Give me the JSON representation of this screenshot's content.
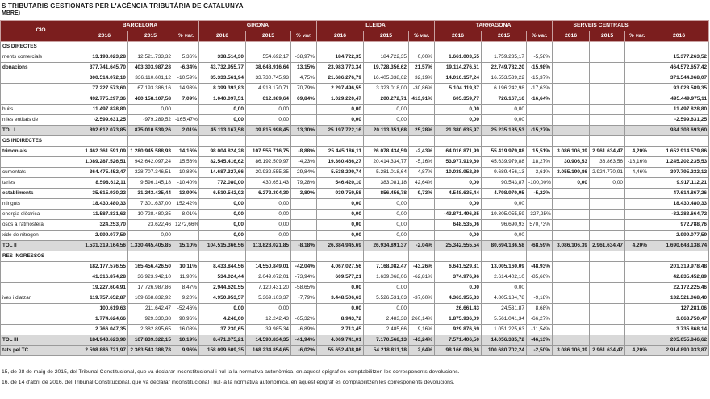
{
  "title": "S TRIBUTARIS GESTIONATS PER L'AGÈNCIA TRIBUTÀRIA DE CATALUNYA",
  "subtitle": "MBRE)",
  "colors": {
    "header_bg": "#7b1e1e",
    "header_text": "#ffffff",
    "total_row_bg": "#d9d9d9"
  },
  "table": {
    "label_header": "CIÓ",
    "groups": [
      {
        "name": "BARCELONA",
        "cols": [
          "2016",
          "2015",
          "% var."
        ]
      },
      {
        "name": "GIRONA",
        "cols": [
          "2016",
          "2015",
          "% var."
        ]
      },
      {
        "name": "LLEIDA",
        "cols": [
          "2016",
          "2015",
          "% var."
        ]
      },
      {
        "name": "TARRAGONA",
        "cols": [
          "2016",
          "2015",
          "% var."
        ]
      },
      {
        "name": "SERVEIS CENTRALS",
        "cols": [
          "2016",
          "2015",
          "% var."
        ]
      },
      {
        "name": "",
        "cols": [
          "2016"
        ]
      }
    ],
    "rows": [
      {
        "l": "OS DIRECTES",
        "s": "section",
        "c": [
          "",
          "",
          "",
          "",
          "",
          "",
          "",
          "",
          "",
          "",
          "",
          "",
          "",
          "",
          "",
          ""
        ]
      },
      {
        "l": "ments comercials",
        "s": "plain",
        "c": [
          "13.193.023,28",
          "12.521.733,32",
          "5,36%",
          "338.514,30",
          "554.692,17",
          "-38,97%",
          "184.722,35",
          "184.722,35",
          "0,00%",
          "1.661.003,55",
          "1.759.235,17",
          "-5,58%",
          "",
          "",
          "",
          "15.377.263,52"
        ]
      },
      {
        "l": "donacions",
        "s": "bold",
        "c": [
          "377.741.645,70",
          "403.303.987,28",
          "-6,34%",
          "43.732.955,77",
          "38.648.916,64",
          "13,15%",
          "23.983.773,34",
          "19.728.356,62",
          "21,57%",
          "19.114.276,61",
          "22.749.782,20",
          "-15,98%",
          "",
          "",
          "",
          "464.572.657,42"
        ]
      },
      {
        "l": "",
        "s": "plain",
        "c": [
          "300.514.072,10",
          "336.110.601,12",
          "-10,59%",
          "35.333.561,94",
          "33.730.745,93",
          "4,75%",
          "21.686.276,79",
          "16.405.338,62",
          "32,19%",
          "14.010.157,24",
          "16.553.539,22",
          "-15,37%",
          "",
          "",
          "",
          "371.544.068,07"
        ]
      },
      {
        "l": "",
        "s": "plain",
        "c": [
          "77.227.573,60",
          "67.193.386,16",
          "14,93%",
          "8.399.393,83",
          "4.918.170,71",
          "70,79%",
          "2.297.496,55",
          "3.323.018,00",
          "-30,86%",
          "5.104.119,37",
          "6.196.242,98",
          "-17,63%",
          "",
          "",
          "",
          "93.028.589,35"
        ]
      },
      {
        "l": "",
        "s": "bold",
        "c": [
          "492.775.297,36",
          "460.158.107,58",
          "7,09%",
          "1.040.097,51",
          "612.389,64",
          "69,84%",
          "1.029.220,47",
          "200.272,71",
          "413,91%",
          "605.359,77",
          "726.167,16",
          "-16,64%",
          "",
          "",
          "",
          "495.449.975,11"
        ]
      },
      {
        "l": "buits",
        "s": "plain",
        "c": [
          "11.497.828,80",
          "0,00",
          "",
          "0,00",
          "0,00",
          "",
          "0,00",
          "0,00",
          "",
          "0,00",
          "0,00",
          "",
          "",
          "",
          "",
          "11.497.828,80"
        ]
      },
      {
        "l": "n les entitats de",
        "s": "plain",
        "c": [
          "-2.599.631,25",
          "-979.289,52",
          "-165,47%",
          "0,00",
          "0,00",
          "",
          "0,00",
          "0,00",
          "",
          "0,00",
          "0,00",
          "",
          "",
          "",
          "",
          "-2.599.631,25"
        ]
      },
      {
        "l": "TOL I",
        "s": "total",
        "c": [
          "892.612.073,85",
          "875.010.539,26",
          "2,01%",
          "45.113.167,58",
          "39.815.998,45",
          "13,30%",
          "25.197.722,16",
          "20.113.351,68",
          "25,28%",
          "21.380.635,97",
          "25.235.185,53",
          "-15,27%",
          "",
          "",
          "",
          "984.303.693,60"
        ]
      },
      {
        "l": "OS INDIRECTES",
        "s": "section",
        "c": [
          "",
          "",
          "",
          "",
          "",
          "",
          "",
          "",
          "",
          "",
          "",
          "",
          "",
          "",
          "",
          ""
        ]
      },
      {
        "l": "trimonials",
        "s": "bold",
        "c": [
          "1.462.361.591,09",
          "1.280.945.588,93",
          "14,16%",
          "98.004.824,28",
          "107.555.716,75",
          "-8,88%",
          "25.445.186,11",
          "26.078.434,59",
          "-2,43%",
          "64.016.871,99",
          "55.419.979,88",
          "15,51%",
          "3.086.106,39",
          "2.961.634,47",
          "4,20%",
          "1.652.914.579,86"
        ]
      },
      {
        "l": "",
        "s": "plain",
        "c": [
          "1.089.287.526,51",
          "942.642.097,24",
          "15,56%",
          "82.545.416,62",
          "86.192.509,97",
          "-4,23%",
          "19.360.466,27",
          "20.414.334,77",
          "-5,16%",
          "53.977.919,60",
          "45.639.979,88",
          "18,27%",
          "30.906,53",
          "36.863,56",
          "-16,16%",
          "1.245.202.235,53"
        ]
      },
      {
        "l": "cumentats",
        "s": "plain",
        "c": [
          "364.475.452,47",
          "328.707.346,51",
          "10,88%",
          "14.687.327,66",
          "20.932.555,35",
          "-29,84%",
          "5.538.299,74",
          "5.281.018,64",
          "4,87%",
          "10.038.952,39",
          "9.689.456,13",
          "3,61%",
          "3.055.199,86",
          "2.924.770,91",
          "4,46%",
          "397.795.232,12"
        ]
      },
      {
        "l": "taries",
        "s": "plain",
        "c": [
          "8.598.612,11",
          "9.596.145,18",
          "-10,40%",
          "772.080,00",
          "430.651,43",
          "79,28%",
          "546.420,10",
          "383.081,18",
          "42,64%",
          "0,00",
          "90.543,87",
          "-100,00%",
          "0,00",
          "0,00",
          "",
          "9.917.112,21"
        ]
      },
      {
        "l": "establiments",
        "s": "bold",
        "c": [
          "35.615.930,22",
          "31.243.435,44",
          "13,99%",
          "6.510.542,02",
          "6.272.304,30",
          "3,80%",
          "939.759,58",
          "856.456,78",
          "9,73%",
          "4.548.635,44",
          "4.798.970,95",
          "-5,22%",
          "",
          "",
          "",
          "47.614.867,26"
        ]
      },
      {
        "l": "ntinguts",
        "s": "plain",
        "c": [
          "18.430.480,33",
          "7.301.637,00",
          "152,42%",
          "0,00",
          "0,00",
          "",
          "0,00",
          "0,00",
          "",
          "0,00",
          "0,00",
          "",
          "",
          "",
          "",
          "18.430.480,33"
        ]
      },
      {
        "l": "energia elèctrica",
        "s": "plain",
        "c": [
          "11.587.831,63",
          "10.728.480,35",
          "8,01%",
          "0,00",
          "0,00",
          "",
          "0,00",
          "0,00",
          "",
          "-43.871.496,35",
          "19.305.055,59",
          "-327,25%",
          "",
          "",
          "",
          "-32.283.664,72"
        ]
      },
      {
        "l": "osos a l'atmosfera",
        "s": "plain",
        "c": [
          "324.253,70",
          "23.622,46",
          "1272,66%",
          "0,00",
          "0,00",
          "",
          "0,00",
          "0,00",
          "",
          "648.535,06",
          "96.690,93",
          "570,73%",
          "",
          "",
          "",
          "972.788,76"
        ]
      },
      {
        "l": "xide de nitrogen",
        "s": "plain",
        "c": [
          "2.999.077,59",
          "0,00",
          "",
          "0,00",
          "0,00",
          "",
          "0,00",
          "0,00",
          "",
          "0,00",
          "0,00",
          "",
          "",
          "",
          "",
          "2.999.077,59"
        ]
      },
      {
        "l": "TOL II",
        "s": "total",
        "c": [
          "1.531.319.164,56",
          "1.330.445.405,85",
          "15,10%",
          "104.515.366,56",
          "113.828.021,85",
          "-8,18%",
          "26.384.945,69",
          "26.934.891,37",
          "-2,04%",
          "25.342.555,54",
          "80.694.186,58",
          "-68,59%",
          "3.086.106,39",
          "2.961.634,47",
          "4,20%",
          "1.690.648.138,74"
        ]
      },
      {
        "l": "RES INGRESSOS",
        "s": "section",
        "c": [
          "",
          "",
          "",
          "",
          "",
          "",
          "",
          "",
          "",
          "",
          "",
          "",
          "",
          "",
          "",
          ""
        ]
      },
      {
        "l": "",
        "s": "bold",
        "c": [
          "182.177.576,55",
          "165.456.426,50",
          "10,11%",
          "8.433.844,56",
          "14.550.849,01",
          "-42,04%",
          "4.067.027,56",
          "7.168.082,47",
          "-43,26%",
          "6.641.529,81",
          "13.005.160,09",
          "-48,93%",
          "",
          "",
          "",
          "201.319.978,48"
        ]
      },
      {
        "l": "",
        "s": "plain",
        "c": [
          "41.316.874,28",
          "36.923.942,10",
          "11,90%",
          "534.024,44",
          "2.049.072,01",
          "-73,94%",
          "609.577,21",
          "1.639.068,06",
          "-62,81%",
          "374.976,96",
          "2.614.402,10",
          "-85,66%",
          "",
          "",
          "",
          "42.835.452,89"
        ]
      },
      {
        "l": "",
        "s": "plain",
        "c": [
          "19.227.604,91",
          "17.726.987,86",
          "8,47%",
          "2.944.620,55",
          "7.120.431,20",
          "-58,65%",
          "0,00",
          "0,00",
          "",
          "0,00",
          "0,00",
          "",
          "",
          "",
          "",
          "22.172.225,46"
        ]
      },
      {
        "l": "ives i d'atzar",
        "s": "plain",
        "c": [
          "119.757.652,87",
          "109.668.832,92",
          "9,20%",
          "4.950.953,57",
          "5.369.103,37",
          "-7,79%",
          "3.448.506,63",
          "5.526.531,03",
          "-37,60%",
          "4.363.955,33",
          "4.805.184,78",
          "-9,18%",
          "",
          "",
          "",
          "132.521.068,40"
        ]
      },
      {
        "l": "",
        "s": "plain",
        "c": [
          "100.619,63",
          "211.642,47",
          "-52,46%",
          "0,00",
          "0,00",
          "",
          "0,00",
          "0,00",
          "",
          "26.661,43",
          "24.531,87",
          "8,68%",
          "",
          "",
          "",
          "127.281,06"
        ]
      },
      {
        "l": "",
        "s": "plain",
        "c": [
          "1.774.624,66",
          "929.330,38",
          "90,96%",
          "4.246,00",
          "12.242,43",
          "-65,32%",
          "8.943,72",
          "2.483,38",
          "260,14%",
          "1.875.936,09",
          "5.561.041,34",
          "-66,27%",
          "",
          "",
          "",
          "3.663.750,47"
        ]
      },
      {
        "l": "",
        "s": "plain",
        "c": [
          "2.766.047,35",
          "2.382.895,65",
          "16,08%",
          "37.230,65",
          "39.985,34",
          "-6,89%",
          "2.713,45",
          "2.485,66",
          "9,16%",
          "929.876,69",
          "1.051.225,63",
          "-11,54%",
          "",
          "",
          "",
          "3.735.868,14"
        ]
      },
      {
        "l": "TOL III",
        "s": "total",
        "c": [
          "184.943.623,90",
          "167.839.322,15",
          "10,19%",
          "8.471.075,21",
          "14.590.834,35",
          "-41,94%",
          "4.069.741,01",
          "7.170.568,13",
          "-43,24%",
          "7.571.406,50",
          "14.056.385,72",
          "-46,13%",
          "",
          "",
          "",
          "205.055.846,62"
        ]
      },
      {
        "l": "tats pel TC",
        "s": "total",
        "c": [
          "2.598.886.721,97",
          "2.363.543.388,78",
          "9,96%",
          "158.099.609,35",
          "168.234.854,65",
          "-6,02%",
          "55.652.408,86",
          "54.218.811,18",
          "2,64%",
          "98.166.086,36",
          "100.680.702,24",
          "-2,50%",
          "3.086.106,39",
          "2.961.634,47",
          "4,20%",
          "2.914.890.933,87"
        ]
      }
    ]
  },
  "footnotes": [
    "15, de 28 de maig de 2015, del Tribunal Constitucional, que va declarar inconstitucional i nul·la la normativa autonòmica, en aquest epígraf es comptabilitzen les corresponents devolucions.",
    "16, de 14 d'abril de 2016, del Tribunal Constitucional, que va declarar inconstitucional i nul·la la normativa autonòmica, en aquest epígraf es comptabilitzen les corresponents devolucions."
  ]
}
